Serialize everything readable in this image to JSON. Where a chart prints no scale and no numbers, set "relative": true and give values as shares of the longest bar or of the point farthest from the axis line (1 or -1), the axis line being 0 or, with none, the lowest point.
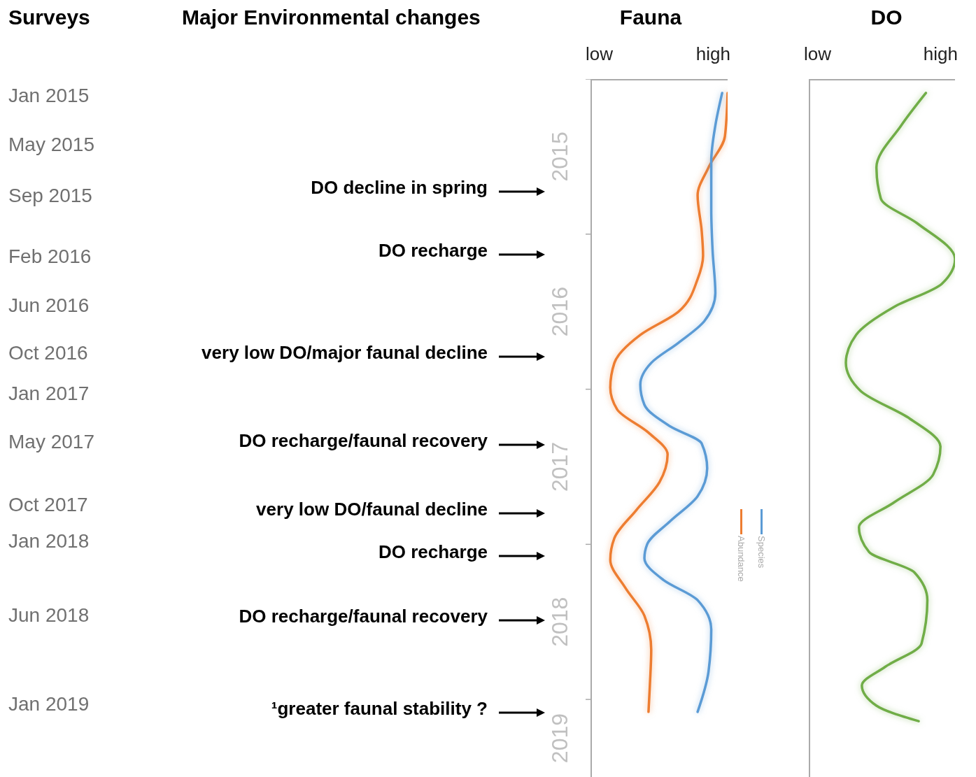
{
  "chart_data": [
    {
      "type": "other",
      "title": "Surveys",
      "annotations": [
        "Jan 2015",
        "May 2015",
        "Sep 2015",
        "Feb 2016",
        "Jun 2016",
        "Oct 2016",
        "Jan 2017",
        "May 2017",
        "Oct 2017",
        "Jan 2018",
        "Jun 2018",
        "Jan 2019"
      ]
    },
    {
      "type": "other",
      "title": "Major Environmental changes",
      "annotations": [
        "DO decline in spring",
        "DO recharge",
        "very low DO/major faunal decline",
        "DO recharge/faunal recovery",
        "very low DO/faunal decline",
        "DO recharge",
        "DO recharge/faunal recovery",
        "¹greater faunal stability ?"
      ]
    },
    {
      "type": "line",
      "title": "Fauna",
      "orientation": "horizontal",
      "relative": true,
      "annotations": [
        "low",
        "high"
      ],
      "legend": "right",
      "ylim": [
        2019.5,
        2015
      ],
      "yticks": [
        {
          "value": 2015,
          "label": null
        },
        {
          "value": 2015.5,
          "label": "2015"
        },
        {
          "value": 2016,
          "label": null
        },
        {
          "value": 2016.5,
          "label": "2016"
        },
        {
          "value": 2017,
          "label": null
        },
        {
          "value": 2017.5,
          "label": "2017"
        },
        {
          "value": 2018,
          "label": null
        },
        {
          "value": 2018.5,
          "label": "2018"
        },
        {
          "value": 2019,
          "label": null
        },
        {
          "value": 2019.25,
          "label": "2019"
        }
      ],
      "series": [
        {
          "name": "Abundance",
          "color": "#ed7d31",
          "x": [
            2015.09,
            2015.37,
            2015.57,
            2015.75,
            2015.98,
            2016.14,
            2016.29,
            2016.5,
            2016.65,
            2016.83,
            2016.99,
            2017.13,
            2017.28,
            2017.42,
            2017.6,
            2017.78,
            2017.96,
            2018.1,
            2018.28,
            2018.46,
            2018.68,
            2018.91,
            2019.08
          ],
          "values": [
            1.0,
            0.98,
            0.86,
            0.78,
            0.81,
            0.82,
            0.78,
            0.64,
            0.36,
            0.17,
            0.14,
            0.19,
            0.42,
            0.56,
            0.5,
            0.33,
            0.17,
            0.14,
            0.25,
            0.39,
            0.44,
            0.43,
            0.42
          ]
        },
        {
          "name": "Species",
          "color": "#5b9bd5",
          "x": [
            2015.09,
            2015.3,
            2015.53,
            2015.84,
            2016.11,
            2016.38,
            2016.56,
            2016.7,
            2016.83,
            2016.97,
            2017.1,
            2017.24,
            2017.35,
            2017.51,
            2017.69,
            2017.85,
            2018.0,
            2018.09,
            2018.23,
            2018.36,
            2018.55,
            2018.82,
            2019.08
          ],
          "values": [
            0.96,
            0.91,
            0.88,
            0.88,
            0.89,
            0.91,
            0.83,
            0.64,
            0.44,
            0.36,
            0.39,
            0.58,
            0.81,
            0.85,
            0.78,
            0.58,
            0.41,
            0.39,
            0.53,
            0.78,
            0.88,
            0.86,
            0.78
          ]
        }
      ]
    },
    {
      "type": "line",
      "title": "DO",
      "orientation": "horizontal",
      "relative": true,
      "annotations": [
        "low",
        "high"
      ],
      "ylim": [
        2019.5,
        2015
      ],
      "series": [
        {
          "color": "#70ad47",
          "x": [
            2015.09,
            2015.3,
            2015.57,
            2015.77,
            2015.93,
            2016.16,
            2016.32,
            2016.47,
            2016.65,
            2016.83,
            2017.01,
            2017.19,
            2017.37,
            2017.55,
            2017.73,
            2017.89,
            2018.05,
            2018.18,
            2018.36,
            2018.64,
            2018.79,
            2018.91,
            2019.04,
            2019.14
          ],
          "values": [
            0.8,
            0.63,
            0.46,
            0.49,
            0.74,
            1.0,
            0.91,
            0.58,
            0.32,
            0.25,
            0.35,
            0.69,
            0.9,
            0.85,
            0.58,
            0.34,
            0.41,
            0.72,
            0.81,
            0.77,
            0.52,
            0.36,
            0.46,
            0.75
          ]
        }
      ]
    }
  ]
}
